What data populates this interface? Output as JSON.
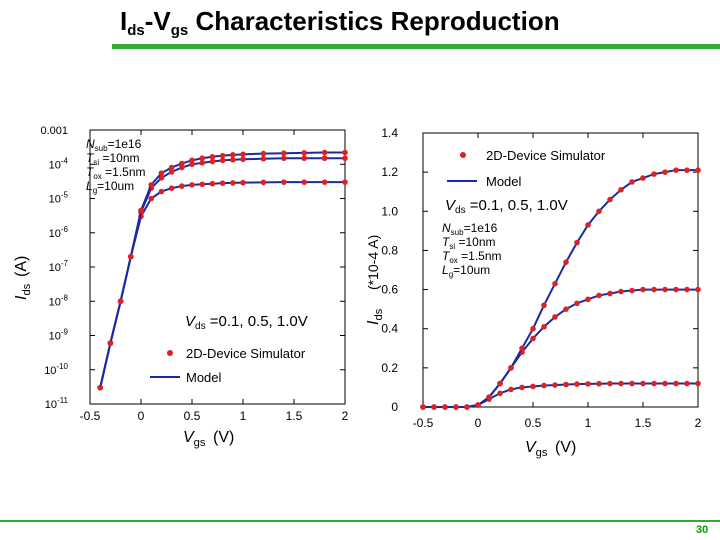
{
  "slide": {
    "title_main": "I",
    "title_sub1": "ds",
    "title_dash": "-V",
    "title_sub2": "gs",
    "title_rest": " Characteristics Reproduction",
    "page_number": "30",
    "accent_color": "#33aa33"
  },
  "chart_data": [
    {
      "type": "line",
      "scale": "log-y",
      "xlim": [
        -0.5,
        2
      ],
      "ylim": [
        1e-11,
        0.001
      ],
      "x_ticks": [
        "-0.5",
        "0",
        "0.5",
        "1",
        "1.5",
        "2"
      ],
      "y_ticks": [
        "0.001",
        "10-4",
        "10-5",
        "10-6",
        "10-7",
        "10-8",
        "10-9",
        "10-10",
        "10-11"
      ],
      "xlabel": "Vgs (V)",
      "ylabel": "Ids(A)",
      "params": [
        "Nsub=1e16",
        "Tsi =10nm",
        "Tox =1.5nm",
        "Lg=10um"
      ],
      "vds_note": "Vds =0.1, 0.5, 1.0V",
      "legend": [
        "2D-Device Simulator",
        "Model"
      ],
      "colors": {
        "simulator": "#dd2222",
        "model": "#1a2aa0"
      },
      "series": [
        {
          "vds": 0.1,
          "x": [
            -0.4,
            -0.3,
            -0.2,
            -0.1,
            0,
            0.1,
            0.2,
            0.3,
            0.4,
            0.5,
            0.6,
            0.7,
            0.8,
            0.9,
            1.0,
            1.2,
            1.4,
            1.6,
            1.8,
            2.0
          ],
          "y": [
            3e-11,
            6e-10,
            1e-08,
            2e-07,
            3e-06,
            1e-05,
            1.6e-05,
            2e-05,
            2.3e-05,
            2.5e-05,
            2.6e-05,
            2.7e-05,
            2.8e-05,
            2.85e-05,
            2.9e-05,
            2.95e-05,
            3e-05,
            3e-05,
            3e-05,
            3e-05
          ]
        },
        {
          "vds": 0.5,
          "x": [
            -0.4,
            -0.3,
            -0.2,
            -0.1,
            0,
            0.1,
            0.2,
            0.3,
            0.4,
            0.5,
            0.6,
            0.7,
            0.8,
            0.9,
            1.0,
            1.2,
            1.4,
            1.6,
            1.8,
            2.0
          ],
          "y": [
            3e-11,
            6e-10,
            1e-08,
            2e-07,
            4e-06,
            2e-05,
            4e-05,
            6e-05,
            8e-05,
            0.0001,
            0.00011,
            0.00012,
            0.00013,
            0.000135,
            0.00014,
            0.000145,
            0.00015,
            0.00015,
            0.00015,
            0.00015
          ]
        },
        {
          "vds": 1.0,
          "x": [
            -0.4,
            -0.3,
            -0.2,
            -0.1,
            0,
            0.1,
            0.2,
            0.3,
            0.4,
            0.5,
            0.6,
            0.7,
            0.8,
            0.9,
            1.0,
            1.2,
            1.4,
            1.6,
            1.8,
            2.0
          ],
          "y": [
            3e-11,
            6e-10,
            1e-08,
            2e-07,
            4.5e-06,
            2.5e-05,
            5.5e-05,
            8e-05,
            0.000105,
            0.00013,
            0.00015,
            0.000165,
            0.000178,
            0.000188,
            0.000195,
            0.000205,
            0.00021,
            0.000215,
            0.00022,
            0.00022
          ]
        }
      ]
    },
    {
      "type": "line",
      "scale": "linear",
      "xlim": [
        -0.5,
        2
      ],
      "ylim": [
        0,
        1.4
      ],
      "x_ticks": [
        "-0.5",
        "0",
        "0.5",
        "1",
        "1.5",
        "2"
      ],
      "y_ticks": [
        "0",
        "0.2",
        "0.4",
        "0.6",
        "0.8",
        "1.0",
        "1.2",
        "1.4"
      ],
      "xlabel": "Vgs (V)",
      "ylabel": "Ids (*10-4 A)",
      "params": [
        "Nsub=1e16",
        "Tsi =10nm",
        "Tox =1.5nm",
        "Lg=10um"
      ],
      "vds_note": "Vds =0.1, 0.5, 1.0V",
      "legend": [
        "2D-Device Simulator",
        "Model"
      ],
      "colors": {
        "simulator": "#dd2222",
        "model": "#1a2aa0"
      },
      "series": [
        {
          "vds": 0.1,
          "x": [
            -0.5,
            -0.4,
            -0.3,
            -0.2,
            -0.1,
            0,
            0.1,
            0.2,
            0.3,
            0.4,
            0.5,
            0.6,
            0.7,
            0.8,
            0.9,
            1.0,
            1.1,
            1.2,
            1.3,
            1.4,
            1.5,
            1.6,
            1.7,
            1.8,
            1.9,
            2.0
          ],
          "y": [
            0,
            0,
            0,
            0,
            0,
            0.01,
            0.04,
            0.07,
            0.09,
            0.1,
            0.105,
            0.11,
            0.112,
            0.115,
            0.117,
            0.118,
            0.119,
            0.12,
            0.12,
            0.12,
            0.12,
            0.12,
            0.12,
            0.12,
            0.12,
            0.12
          ]
        },
        {
          "vds": 0.5,
          "x": [
            -0.5,
            -0.4,
            -0.3,
            -0.2,
            -0.1,
            0,
            0.1,
            0.2,
            0.3,
            0.4,
            0.5,
            0.6,
            0.7,
            0.8,
            0.9,
            1.0,
            1.1,
            1.2,
            1.3,
            1.4,
            1.5,
            1.6,
            1.7,
            1.8,
            1.9,
            2.0
          ],
          "y": [
            0,
            0,
            0,
            0,
            0,
            0.01,
            0.05,
            0.12,
            0.2,
            0.28,
            0.35,
            0.41,
            0.46,
            0.5,
            0.53,
            0.55,
            0.57,
            0.58,
            0.59,
            0.595,
            0.6,
            0.6,
            0.6,
            0.6,
            0.6,
            0.6
          ]
        },
        {
          "vds": 1.0,
          "x": [
            -0.5,
            -0.4,
            -0.3,
            -0.2,
            -0.1,
            0,
            0.1,
            0.2,
            0.3,
            0.4,
            0.5,
            0.6,
            0.7,
            0.8,
            0.9,
            1.0,
            1.1,
            1.2,
            1.3,
            1.4,
            1.5,
            1.6,
            1.7,
            1.8,
            1.9,
            2.0
          ],
          "y": [
            0,
            0,
            0,
            0,
            0,
            0.01,
            0.05,
            0.12,
            0.2,
            0.3,
            0.4,
            0.52,
            0.63,
            0.74,
            0.84,
            0.93,
            1.0,
            1.06,
            1.11,
            1.15,
            1.17,
            1.19,
            1.2,
            1.21,
            1.21,
            1.21
          ]
        }
      ]
    }
  ]
}
